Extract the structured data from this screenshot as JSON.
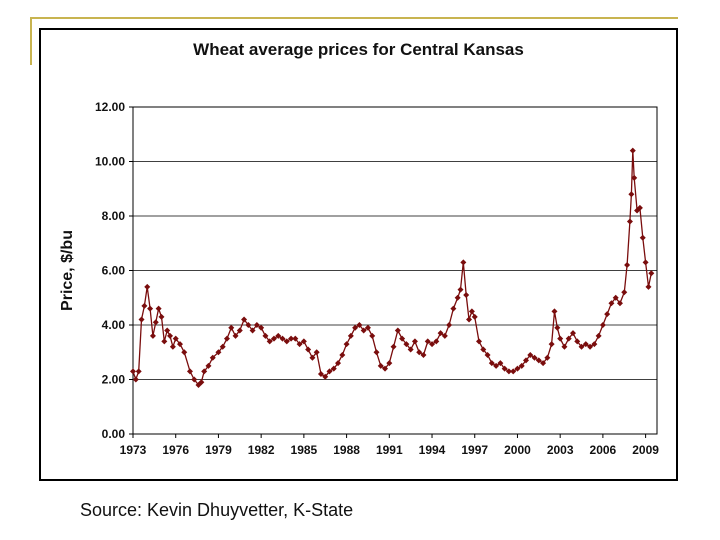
{
  "chart_data": {
    "type": "line",
    "title": "Wheat average prices for Central Kansas",
    "xlabel": "",
    "ylabel": "Price, $/bu",
    "ylim": [
      0,
      12
    ],
    "xlim": [
      1973,
      2009.8
    ],
    "yticks": [
      "0.00",
      "2.00",
      "4.00",
      "6.00",
      "8.00",
      "10.00",
      "12.00"
    ],
    "xticks": [
      "1973",
      "1976",
      "1979",
      "1982",
      "1985",
      "1988",
      "1991",
      "1994",
      "1997",
      "2000",
      "2003",
      "2006",
      "2009"
    ],
    "grid": true,
    "color": "#7a0d0d",
    "series": [
      {
        "name": "Wheat average price",
        "x": [
          1973.0,
          1973.2,
          1973.4,
          1973.6,
          1973.8,
          1974.0,
          1974.2,
          1974.4,
          1974.6,
          1974.8,
          1975.0,
          1975.2,
          1975.4,
          1975.6,
          1975.8,
          1976.0,
          1976.3,
          1976.6,
          1977.0,
          1977.3,
          1977.6,
          1977.8,
          1978.0,
          1978.3,
          1978.6,
          1979.0,
          1979.3,
          1979.6,
          1979.9,
          1980.2,
          1980.5,
          1980.8,
          1981.1,
          1981.4,
          1981.7,
          1982.0,
          1982.3,
          1982.6,
          1982.9,
          1983.2,
          1983.5,
          1983.8,
          1984.1,
          1984.4,
          1984.7,
          1985.0,
          1985.3,
          1985.6,
          1985.9,
          1986.2,
          1986.5,
          1986.8,
          1987.1,
          1987.4,
          1987.7,
          1988.0,
          1988.3,
          1988.6,
          1988.9,
          1989.2,
          1989.5,
          1989.8,
          1990.1,
          1990.4,
          1990.7,
          1991.0,
          1991.3,
          1991.6,
          1991.9,
          1992.2,
          1992.5,
          1992.8,
          1993.1,
          1993.4,
          1993.7,
          1994.0,
          1994.3,
          1994.6,
          1994.9,
          1995.2,
          1995.5,
          1995.8,
          1996.0,
          1996.2,
          1996.4,
          1996.6,
          1996.8,
          1997.0,
          1997.3,
          1997.6,
          1997.9,
          1998.2,
          1998.5,
          1998.8,
          1999.1,
          1999.4,
          1999.7,
          2000.0,
          2000.3,
          2000.6,
          2000.9,
          2001.2,
          2001.5,
          2001.8,
          2002.1,
          2002.4,
          2002.6,
          2002.8,
          2003.0,
          2003.3,
          2003.6,
          2003.9,
          2004.2,
          2004.5,
          2004.8,
          2005.1,
          2005.4,
          2005.7,
          2006.0,
          2006.3,
          2006.6,
          2006.9,
          2007.2,
          2007.5,
          2007.7,
          2007.9,
          2008.0,
          2008.1,
          2008.2,
          2008.4,
          2008.6,
          2008.8,
          2009.0,
          2009.2,
          2009.4
        ],
        "y": [
          2.3,
          2.0,
          2.3,
          4.2,
          4.7,
          5.4,
          4.6,
          3.6,
          4.1,
          4.6,
          4.3,
          3.4,
          3.8,
          3.6,
          3.2,
          3.5,
          3.3,
          3.0,
          2.3,
          2.0,
          1.8,
          1.9,
          2.3,
          2.5,
          2.8,
          3.0,
          3.2,
          3.5,
          3.9,
          3.6,
          3.8,
          4.2,
          4.0,
          3.8,
          4.0,
          3.9,
          3.6,
          3.4,
          3.5,
          3.6,
          3.5,
          3.4,
          3.5,
          3.5,
          3.3,
          3.4,
          3.1,
          2.8,
          3.0,
          2.2,
          2.1,
          2.3,
          2.4,
          2.6,
          2.9,
          3.3,
          3.6,
          3.9,
          4.0,
          3.8,
          3.9,
          3.6,
          3.0,
          2.5,
          2.4,
          2.6,
          3.2,
          3.8,
          3.5,
          3.3,
          3.1,
          3.4,
          3.0,
          2.9,
          3.4,
          3.3,
          3.4,
          3.7,
          3.6,
          4.0,
          4.6,
          5.0,
          5.3,
          6.3,
          5.1,
          4.2,
          4.5,
          4.3,
          3.4,
          3.1,
          2.9,
          2.6,
          2.5,
          2.6,
          2.4,
          2.3,
          2.3,
          2.4,
          2.5,
          2.7,
          2.9,
          2.8,
          2.7,
          2.6,
          2.8,
          3.3,
          4.5,
          3.9,
          3.5,
          3.2,
          3.5,
          3.7,
          3.4,
          3.2,
          3.3,
          3.2,
          3.3,
          3.6,
          4.0,
          4.4,
          4.8,
          5.0,
          4.8,
          5.2,
          6.2,
          7.8,
          8.8,
          10.4,
          9.4,
          8.2,
          8.3,
          7.2,
          6.3,
          5.4,
          5.9
        ]
      }
    ]
  },
  "source": "Source: Kevin Dhuyvetter, K-State"
}
